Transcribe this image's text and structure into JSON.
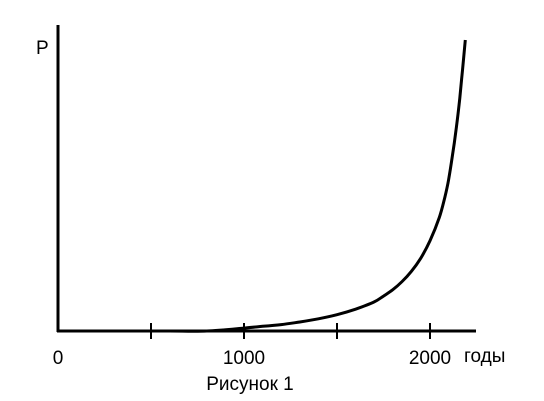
{
  "chart_data": {
    "type": "line",
    "title": "",
    "caption": "Рисунок 1",
    "xlabel": "годы",
    "ylabel": "Р",
    "xlim": [
      0,
      2250
    ],
    "xticks": [
      500,
      1000,
      1500,
      2000
    ],
    "xtick_labels": [
      {
        "value": 0,
        "label": "0"
      },
      {
        "value": 1000,
        "label": "1000"
      },
      {
        "value": 2000,
        "label": "2000"
      }
    ],
    "y_scale_labeled": false,
    "grid": false,
    "legend": "none",
    "line_color": "#000000",
    "series": [
      {
        "x": [
          0,
          200,
          400,
          600,
          800,
          1000,
          1100,
          1200,
          1300,
          1400,
          1500,
          1600,
          1700,
          1750,
          1800,
          1850,
          1900,
          1950,
          2000,
          2050,
          2080,
          2100,
          2120,
          2140,
          2160,
          2175,
          2190
        ],
        "y": [
          0.0,
          0.0,
          0.0,
          0.0,
          0.0,
          0.01,
          0.016,
          0.022,
          0.031,
          0.042,
          0.056,
          0.075,
          0.1,
          0.12,
          0.142,
          0.17,
          0.205,
          0.25,
          0.31,
          0.39,
          0.46,
          0.52,
          0.6,
          0.69,
          0.8,
          0.9,
          1.0
        ]
      }
    ]
  }
}
